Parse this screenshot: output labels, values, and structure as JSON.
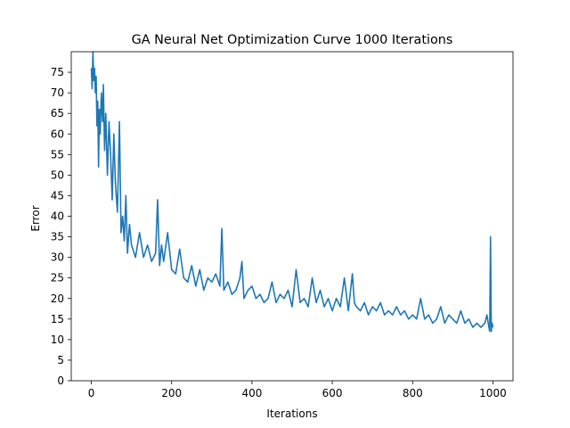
{
  "chart_data": {
    "type": "line",
    "title": "GA Neural Net Optimization Curve 1000 Iterations",
    "xlabel": "Iterations",
    "ylabel": "Error",
    "xlim": [
      -50,
      1050
    ],
    "ylim": [
      0,
      80
    ],
    "xticks": [
      0,
      200,
      400,
      600,
      800,
      1000
    ],
    "yticks": [
      0,
      5,
      10,
      15,
      20,
      25,
      30,
      35,
      40,
      45,
      50,
      55,
      60,
      65,
      70,
      75
    ],
    "grid": false,
    "series": [
      {
        "color": "#1f77b4",
        "x": [
          0,
          2,
          4,
          6,
          8,
          10,
          12,
          14,
          16,
          18,
          20,
          22,
          25,
          28,
          30,
          33,
          36,
          40,
          44,
          48,
          52,
          56,
          60,
          65,
          70,
          74,
          78,
          82,
          86,
          90,
          95,
          100,
          110,
          120,
          130,
          140,
          150,
          160,
          165,
          170,
          175,
          180,
          190,
          200,
          210,
          220,
          230,
          240,
          250,
          260,
          270,
          280,
          290,
          300,
          310,
          320,
          325,
          330,
          340,
          350,
          360,
          370,
          375,
          380,
          390,
          400,
          410,
          420,
          430,
          440,
          450,
          460,
          470,
          480,
          490,
          500,
          510,
          520,
          530,
          540,
          550,
          560,
          570,
          580,
          590,
          600,
          610,
          620,
          630,
          640,
          650,
          655,
          660,
          670,
          680,
          690,
          700,
          710,
          720,
          730,
          740,
          750,
          760,
          770,
          780,
          790,
          800,
          810,
          820,
          830,
          840,
          850,
          860,
          870,
          880,
          890,
          900,
          910,
          920,
          930,
          940,
          950,
          960,
          970,
          980,
          985,
          990,
          992,
          994,
          996,
          998,
          1000
        ],
        "y": [
          76,
          71,
          80,
          73,
          76,
          70,
          74,
          62,
          68,
          52,
          66,
          60,
          70,
          63,
          72,
          56,
          65,
          50,
          63,
          55,
          44,
          60,
          48,
          41,
          63,
          36,
          40,
          34,
          45,
          31,
          38,
          33,
          30,
          36,
          30,
          33,
          29,
          31,
          44,
          28,
          33,
          29,
          36,
          27,
          26,
          32,
          25,
          24,
          28,
          23,
          27,
          22,
          25,
          24,
          26,
          23,
          37,
          22,
          24,
          21,
          22,
          25,
          29,
          20,
          22,
          23,
          20,
          21,
          19,
          20,
          24,
          19,
          21,
          20,
          22,
          18,
          27,
          19,
          20,
          18,
          25,
          19,
          22,
          18,
          20,
          17,
          20,
          18,
          25,
          17,
          26,
          19,
          18,
          17,
          19,
          16,
          18,
          17,
          19,
          16,
          17,
          16,
          18,
          16,
          17,
          15,
          16,
          15,
          20,
          15,
          16,
          14,
          15,
          18,
          14,
          16,
          15,
          14,
          17,
          14,
          15,
          13,
          14,
          13,
          14,
          16,
          13,
          12,
          35,
          12,
          14,
          13
        ]
      }
    ]
  }
}
